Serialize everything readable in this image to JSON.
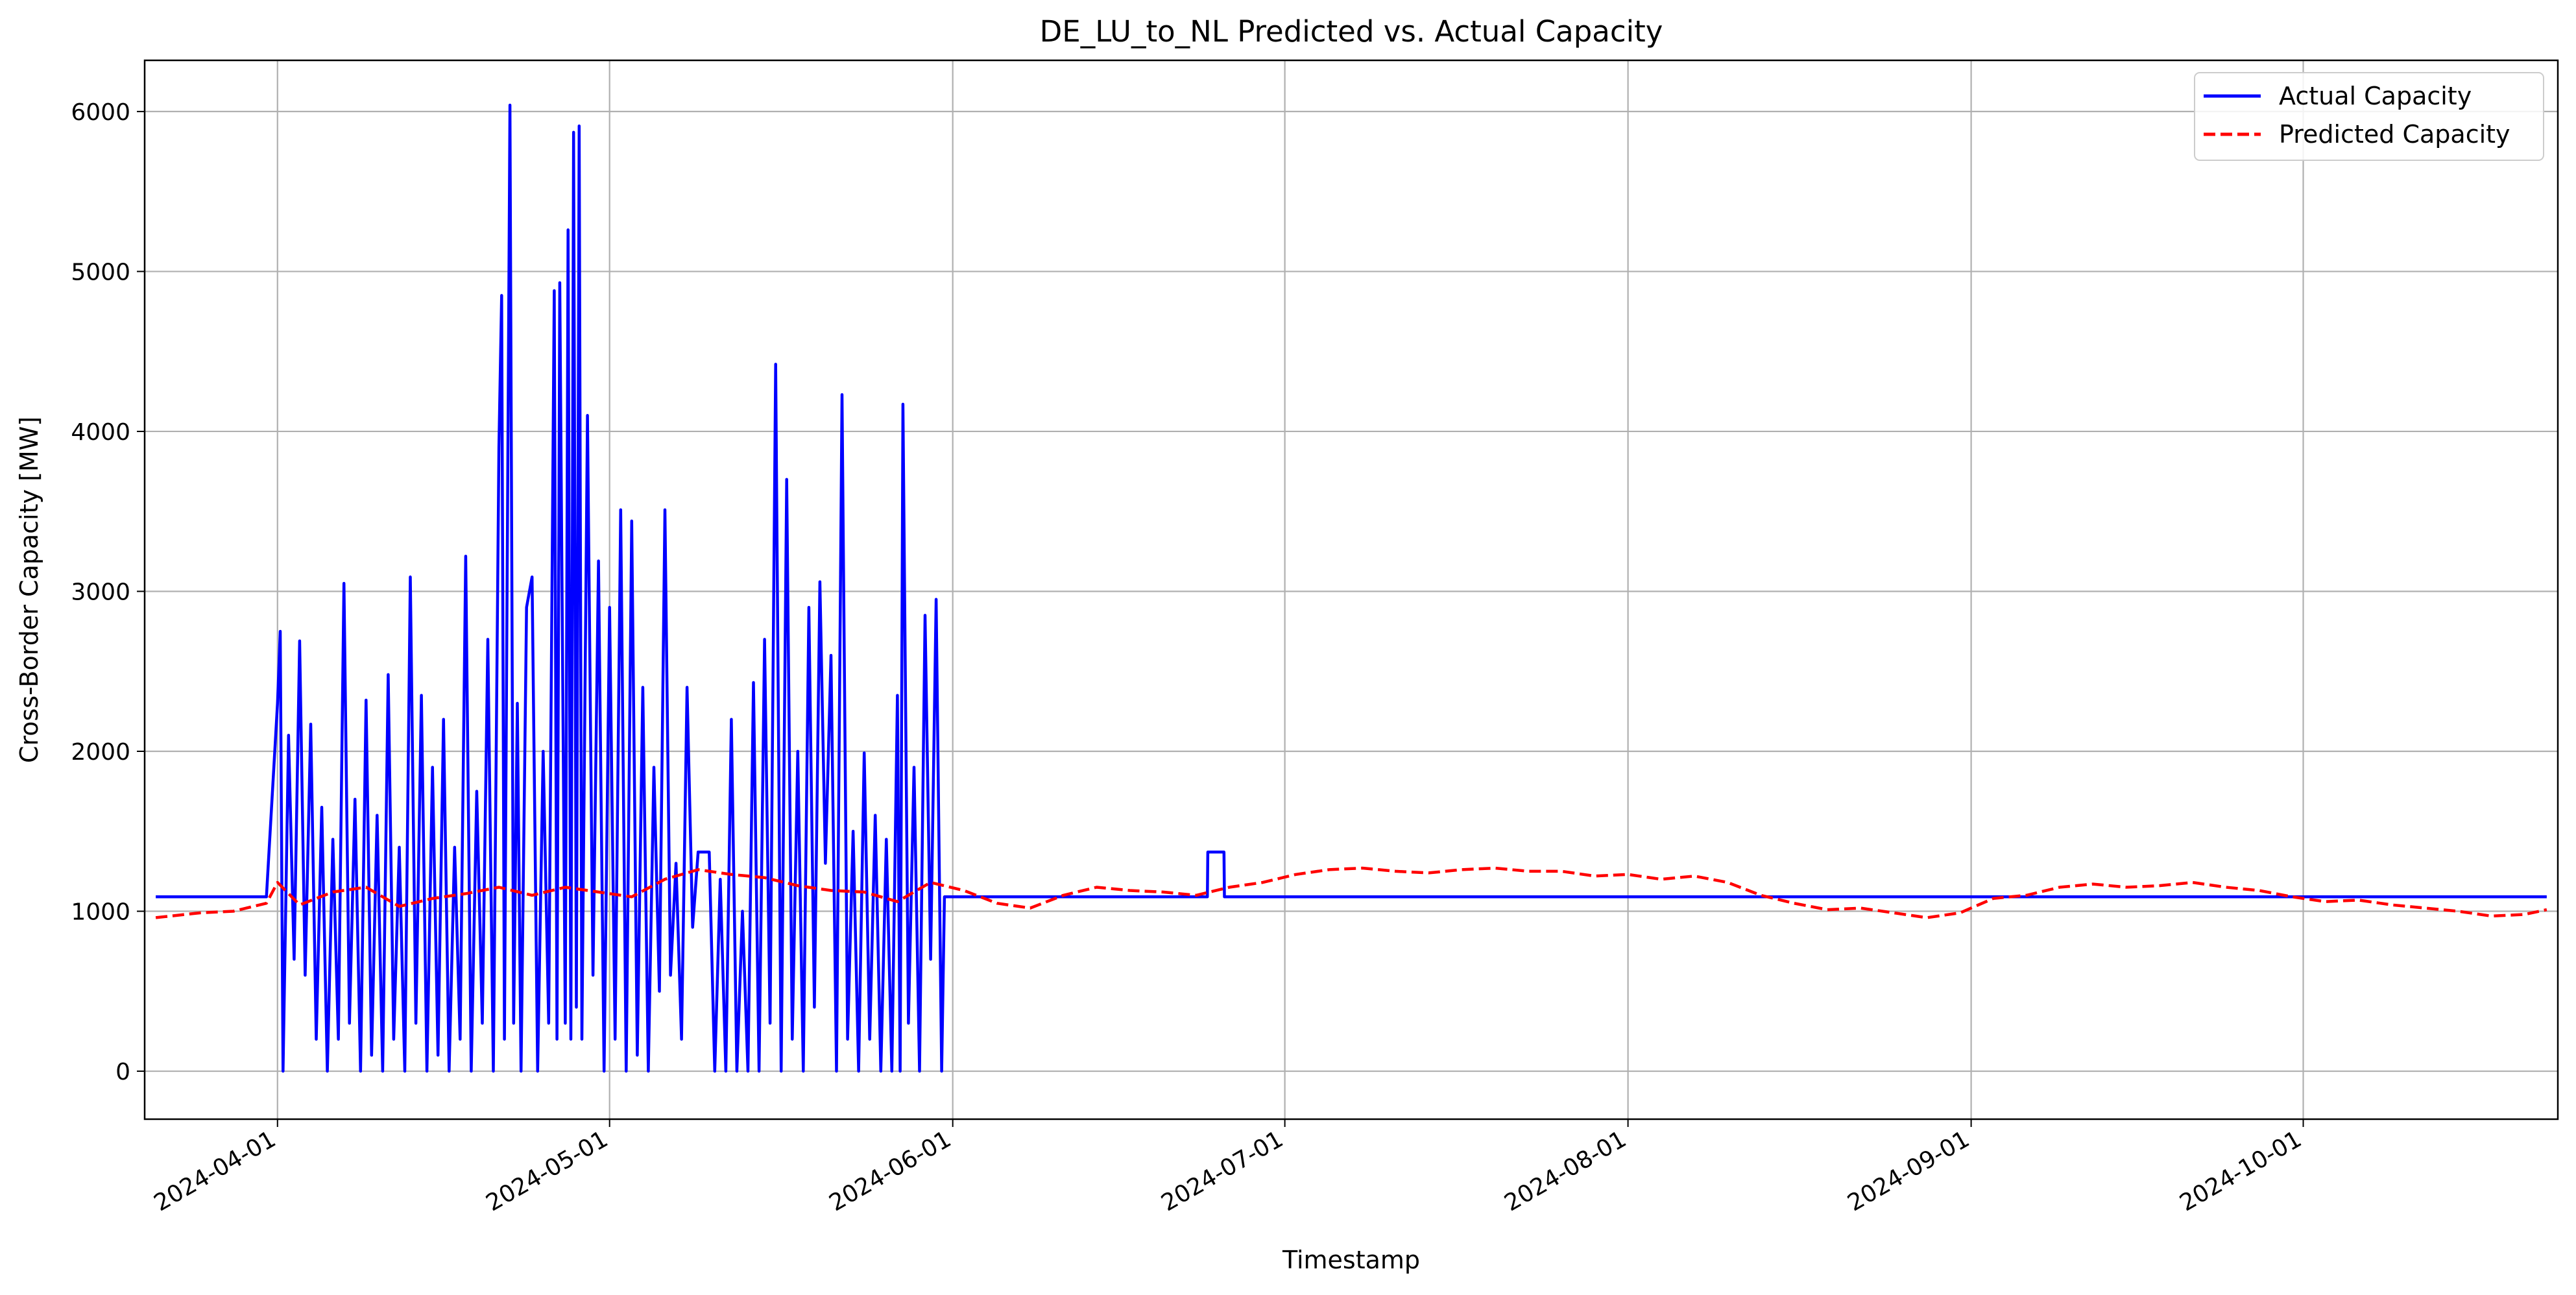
{
  "chart_data": {
    "type": "line",
    "title": "DE_LU_to_NL Predicted vs. Actual Capacity",
    "xlabel": "Timestamp",
    "ylabel": "Cross-Border Capacity [MW]",
    "x_range": [
      "2024-03-20",
      "2024-10-24"
    ],
    "ylim": [
      -300,
      6320
    ],
    "x_ticks": [
      "2024-04-01",
      "2024-05-01",
      "2024-06-01",
      "2024-07-01",
      "2024-08-01",
      "2024-09-01",
      "2024-10-01"
    ],
    "y_ticks": [
      0,
      1000,
      2000,
      3000,
      4000,
      5000,
      6000
    ],
    "grid": true,
    "legend_position": "top-right",
    "series": [
      {
        "name": "Actual Capacity",
        "color": "#0000ff",
        "style": "solid",
        "points": [
          [
            "2024-03-21",
            1090
          ],
          [
            "2024-03-31",
            1090
          ],
          [
            "2024-04-01",
            2300
          ],
          [
            "2024-04-01 06:00",
            2750
          ],
          [
            "2024-04-01 12:00",
            0
          ],
          [
            "2024-04-02",
            2100
          ],
          [
            "2024-04-02 12:00",
            700
          ],
          [
            "2024-04-03",
            2690
          ],
          [
            "2024-04-03 12:00",
            600
          ],
          [
            "2024-04-04",
            2170
          ],
          [
            "2024-04-04 12:00",
            200
          ],
          [
            "2024-04-05",
            1650
          ],
          [
            "2024-04-05 12:00",
            0
          ],
          [
            "2024-04-06",
            1450
          ],
          [
            "2024-04-06 12:00",
            200
          ],
          [
            "2024-04-07",
            3050
          ],
          [
            "2024-04-07 12:00",
            300
          ],
          [
            "2024-04-08",
            1700
          ],
          [
            "2024-04-08 12:00",
            0
          ],
          [
            "2024-04-09",
            2320
          ],
          [
            "2024-04-09 12:00",
            100
          ],
          [
            "2024-04-10",
            1600
          ],
          [
            "2024-04-10 12:00",
            0
          ],
          [
            "2024-04-11",
            2480
          ],
          [
            "2024-04-11 12:00",
            200
          ],
          [
            "2024-04-12",
            1400
          ],
          [
            "2024-04-12 12:00",
            0
          ],
          [
            "2024-04-13",
            3090
          ],
          [
            "2024-04-13 12:00",
            300
          ],
          [
            "2024-04-14",
            2350
          ],
          [
            "2024-04-14 12:00",
            0
          ],
          [
            "2024-04-15",
            1900
          ],
          [
            "2024-04-15 12:00",
            100
          ],
          [
            "2024-04-16",
            2200
          ],
          [
            "2024-04-16 12:00",
            0
          ],
          [
            "2024-04-17",
            1400
          ],
          [
            "2024-04-17 12:00",
            200
          ],
          [
            "2024-04-18",
            3220
          ],
          [
            "2024-04-18 12:00",
            0
          ],
          [
            "2024-04-19",
            1750
          ],
          [
            "2024-04-19 12:00",
            300
          ],
          [
            "2024-04-20",
            2700
          ],
          [
            "2024-04-20 12:00",
            0
          ],
          [
            "2024-04-21",
            3900
          ],
          [
            "2024-04-21 06:00",
            4850
          ],
          [
            "2024-04-21 12:00",
            200
          ],
          [
            "2024-04-22",
            6040
          ],
          [
            "2024-04-22 08:00",
            300
          ],
          [
            "2024-04-22 16:00",
            2300
          ],
          [
            "2024-04-23",
            0
          ],
          [
            "2024-04-23 12:00",
            2900
          ],
          [
            "2024-04-24",
            3090
          ],
          [
            "2024-04-24 12:00",
            0
          ],
          [
            "2024-04-25",
            2000
          ],
          [
            "2024-04-25 12:00",
            300
          ],
          [
            "2024-04-26",
            4880
          ],
          [
            "2024-04-26 06:00",
            200
          ],
          [
            "2024-04-26 12:00",
            4930
          ],
          [
            "2024-04-27",
            300
          ],
          [
            "2024-04-27 06:00",
            5260
          ],
          [
            "2024-04-27 12:00",
            200
          ],
          [
            "2024-04-27 18:00",
            5870
          ],
          [
            "2024-04-28",
            400
          ],
          [
            "2024-04-28 06:00",
            5910
          ],
          [
            "2024-04-28 12:00",
            200
          ],
          [
            "2024-04-29",
            4100
          ],
          [
            "2024-04-29 12:00",
            600
          ],
          [
            "2024-04-30",
            3190
          ],
          [
            "2024-04-30 12:00",
            0
          ],
          [
            "2024-05-01",
            2900
          ],
          [
            "2024-05-01 12:00",
            200
          ],
          [
            "2024-05-02",
            3510
          ],
          [
            "2024-05-02 12:00",
            0
          ],
          [
            "2024-05-03",
            3440
          ],
          [
            "2024-05-03 12:00",
            100
          ],
          [
            "2024-05-04",
            2400
          ],
          [
            "2024-05-04 12:00",
            0
          ],
          [
            "2024-05-05",
            1900
          ],
          [
            "2024-05-05 12:00",
            500
          ],
          [
            "2024-05-06",
            3510
          ],
          [
            "2024-05-06 12:00",
            600
          ],
          [
            "2024-05-07",
            1300
          ],
          [
            "2024-05-07 12:00",
            200
          ],
          [
            "2024-05-08",
            2400
          ],
          [
            "2024-05-08 12:00",
            900
          ],
          [
            "2024-05-09",
            1370
          ],
          [
            "2024-05-10",
            1370
          ],
          [
            "2024-05-10 12:00",
            0
          ],
          [
            "2024-05-11",
            1200
          ],
          [
            "2024-05-11 12:00",
            0
          ],
          [
            "2024-05-12",
            2200
          ],
          [
            "2024-05-12 12:00",
            0
          ],
          [
            "2024-05-13",
            1000
          ],
          [
            "2024-05-13 12:00",
            0
          ],
          [
            "2024-05-14",
            2430
          ],
          [
            "2024-05-14 12:00",
            0
          ],
          [
            "2024-05-15",
            2700
          ],
          [
            "2024-05-15 12:00",
            300
          ],
          [
            "2024-05-16",
            4420
          ],
          [
            "2024-05-16 12:00",
            0
          ],
          [
            "2024-05-17",
            3700
          ],
          [
            "2024-05-17 12:00",
            200
          ],
          [
            "2024-05-18",
            2000
          ],
          [
            "2024-05-18 12:00",
            0
          ],
          [
            "2024-05-19",
            2900
          ],
          [
            "2024-05-19 12:00",
            400
          ],
          [
            "2024-05-20",
            3060
          ],
          [
            "2024-05-20 12:00",
            1300
          ],
          [
            "2024-05-21",
            2600
          ],
          [
            "2024-05-21 12:00",
            0
          ],
          [
            "2024-05-22",
            4230
          ],
          [
            "2024-05-22 12:00",
            200
          ],
          [
            "2024-05-23",
            1500
          ],
          [
            "2024-05-23 12:00",
            0
          ],
          [
            "2024-05-24",
            1990
          ],
          [
            "2024-05-24 12:00",
            200
          ],
          [
            "2024-05-25",
            1600
          ],
          [
            "2024-05-25 12:00",
            0
          ],
          [
            "2024-05-26",
            1450
          ],
          [
            "2024-05-26 12:00",
            0
          ],
          [
            "2024-05-27",
            2350
          ],
          [
            "2024-05-27 06:00",
            0
          ],
          [
            "2024-05-27 12:00",
            4170
          ],
          [
            "2024-05-28",
            300
          ],
          [
            "2024-05-28 12:00",
            1900
          ],
          [
            "2024-05-29",
            0
          ],
          [
            "2024-05-29 12:00",
            2850
          ],
          [
            "2024-05-30",
            700
          ],
          [
            "2024-05-30 12:00",
            2950
          ],
          [
            "2024-05-31",
            0
          ],
          [
            "2024-05-31 06:00",
            1090
          ],
          [
            "2024-06-24",
            1090
          ],
          [
            "2024-06-24 01:00",
            1370
          ],
          [
            "2024-06-25 12:00",
            1370
          ],
          [
            "2024-06-25 13:00",
            1090
          ],
          [
            "2024-10-23",
            1090
          ]
        ]
      },
      {
        "name": "Predicted Capacity",
        "color": "#ff0000",
        "style": "dashed",
        "points": [
          [
            "2024-03-21",
            960
          ],
          [
            "2024-03-25",
            990
          ],
          [
            "2024-03-28",
            1000
          ],
          [
            "2024-03-31",
            1050
          ],
          [
            "2024-04-01",
            1180
          ],
          [
            "2024-04-03",
            1040
          ],
          [
            "2024-04-06",
            1120
          ],
          [
            "2024-04-09",
            1150
          ],
          [
            "2024-04-12",
            1030
          ],
          [
            "2024-04-15",
            1080
          ],
          [
            "2024-04-18",
            1110
          ],
          [
            "2024-04-21",
            1150
          ],
          [
            "2024-04-24",
            1100
          ],
          [
            "2024-04-27",
            1150
          ],
          [
            "2024-04-30",
            1120
          ],
          [
            "2024-05-03",
            1090
          ],
          [
            "2024-05-06",
            1200
          ],
          [
            "2024-05-09",
            1260
          ],
          [
            "2024-05-12",
            1230
          ],
          [
            "2024-05-15",
            1210
          ],
          [
            "2024-05-18",
            1160
          ],
          [
            "2024-05-21",
            1130
          ],
          [
            "2024-05-24",
            1120
          ],
          [
            "2024-05-27",
            1060
          ],
          [
            "2024-05-30",
            1180
          ],
          [
            "2024-06-02",
            1130
          ],
          [
            "2024-06-05",
            1050
          ],
          [
            "2024-06-08",
            1020
          ],
          [
            "2024-06-11",
            1100
          ],
          [
            "2024-06-14",
            1150
          ],
          [
            "2024-06-17",
            1130
          ],
          [
            "2024-06-20",
            1120
          ],
          [
            "2024-06-23",
            1100
          ],
          [
            "2024-06-26",
            1150
          ],
          [
            "2024-06-29",
            1180
          ],
          [
            "2024-07-02",
            1230
          ],
          [
            "2024-07-05",
            1260
          ],
          [
            "2024-07-08",
            1270
          ],
          [
            "2024-07-11",
            1250
          ],
          [
            "2024-07-14",
            1240
          ],
          [
            "2024-07-17",
            1260
          ],
          [
            "2024-07-20",
            1270
          ],
          [
            "2024-07-23",
            1250
          ],
          [
            "2024-07-26",
            1250
          ],
          [
            "2024-07-29",
            1220
          ],
          [
            "2024-08-01",
            1230
          ],
          [
            "2024-08-04",
            1200
          ],
          [
            "2024-08-07",
            1220
          ],
          [
            "2024-08-10",
            1180
          ],
          [
            "2024-08-13",
            1100
          ],
          [
            "2024-08-16",
            1050
          ],
          [
            "2024-08-19",
            1010
          ],
          [
            "2024-08-22",
            1020
          ],
          [
            "2024-08-25",
            990
          ],
          [
            "2024-08-28",
            960
          ],
          [
            "2024-08-31",
            990
          ],
          [
            "2024-09-03",
            1080
          ],
          [
            "2024-09-06",
            1100
          ],
          [
            "2024-09-09",
            1150
          ],
          [
            "2024-09-12",
            1170
          ],
          [
            "2024-09-15",
            1150
          ],
          [
            "2024-09-18",
            1160
          ],
          [
            "2024-09-21",
            1180
          ],
          [
            "2024-09-24",
            1150
          ],
          [
            "2024-09-27",
            1130
          ],
          [
            "2024-09-30",
            1090
          ],
          [
            "2024-10-03",
            1060
          ],
          [
            "2024-10-06",
            1070
          ],
          [
            "2024-10-09",
            1040
          ],
          [
            "2024-10-12",
            1020
          ],
          [
            "2024-10-15",
            1000
          ],
          [
            "2024-10-18",
            970
          ],
          [
            "2024-10-21",
            980
          ],
          [
            "2024-10-23",
            1010
          ]
        ]
      }
    ]
  }
}
